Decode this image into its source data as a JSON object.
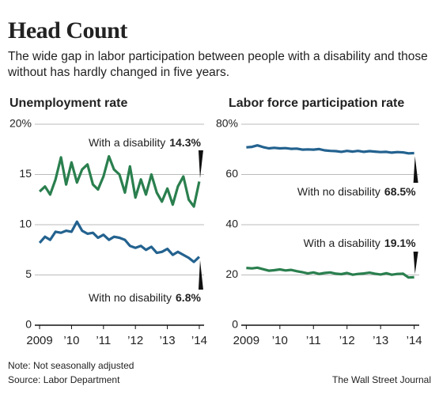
{
  "title": "Head Count",
  "subtitle": "The wide gap in labor participation between people with a disability and those without has hardly changed in five years.",
  "note": "Note: Not seasonally adjusted",
  "source": "Source: Labor Department",
  "credit": "The Wall Street Journal",
  "chart_data": [
    {
      "type": "line",
      "title": "Unemployment rate",
      "x": [
        2009,
        2009.17,
        2009.33,
        2009.5,
        2009.67,
        2009.83,
        2010,
        2010.17,
        2010.33,
        2010.5,
        2010.67,
        2010.83,
        2011,
        2011.17,
        2011.33,
        2011.5,
        2011.67,
        2011.83,
        2012,
        2012.17,
        2012.33,
        2012.5,
        2012.67,
        2012.83,
        2013,
        2013.17,
        2013.33,
        2013.5,
        2013.67,
        2013.83,
        2014
      ],
      "xlim": [
        2008.85,
        2014.15
      ],
      "xticks": [
        2009,
        {
          "value": 2010,
          "label": "’10"
        },
        {
          "value": 2011,
          "label": "’11"
        },
        {
          "value": 2012,
          "label": "’12"
        },
        {
          "value": 2013,
          "label": "’13"
        },
        {
          "value": 2014,
          "label": "’14"
        }
      ],
      "ylim": [
        0,
        20
      ],
      "yticks": [
        {
          "value": 20,
          "label": "20%"
        },
        15,
        10,
        5,
        0
      ],
      "grid": true,
      "series": [
        {
          "name": "With a disability",
          "color": "#2a7f4e",
          "values": [
            13.3,
            13.8,
            13.0,
            14.5,
            16.7,
            14.0,
            16.2,
            14.2,
            15.5,
            16.0,
            14.0,
            13.5,
            14.8,
            16.8,
            15.5,
            15.0,
            13.2,
            15.8,
            12.7,
            14.5,
            13.0,
            15.0,
            13.2,
            12.3,
            13.6,
            12.0,
            13.8,
            14.8,
            12.5,
            11.8,
            14.3
          ],
          "value_labels": [
            null,
            null,
            null,
            null,
            null,
            null,
            null,
            null,
            null,
            null,
            null,
            null,
            null,
            null,
            null,
            null,
            null,
            null,
            null,
            null,
            null,
            null,
            null,
            null,
            null,
            null,
            null,
            null,
            null,
            null,
            "14.3%"
          ]
        },
        {
          "name": "With no disability",
          "color": "#23628f",
          "values": [
            8.2,
            8.8,
            8.5,
            9.3,
            9.2,
            9.4,
            9.3,
            10.3,
            9.4,
            9.1,
            9.2,
            8.7,
            9.0,
            8.5,
            8.8,
            8.7,
            8.5,
            7.9,
            7.7,
            7.9,
            7.5,
            7.8,
            7.2,
            7.3,
            7.6,
            7.0,
            7.3,
            7.0,
            6.7,
            6.3,
            6.8
          ],
          "value_labels": [
            null,
            null,
            null,
            null,
            null,
            null,
            null,
            null,
            null,
            null,
            null,
            null,
            null,
            null,
            null,
            null,
            null,
            null,
            null,
            null,
            null,
            null,
            null,
            null,
            null,
            null,
            null,
            null,
            null,
            null,
            "6.8%"
          ]
        }
      ]
    },
    {
      "type": "line",
      "title": "Labor force participation rate",
      "x": [
        2009,
        2009.17,
        2009.33,
        2009.5,
        2009.67,
        2009.83,
        2010,
        2010.17,
        2010.33,
        2010.5,
        2010.67,
        2010.83,
        2011,
        2011.17,
        2011.33,
        2011.5,
        2011.67,
        2011.83,
        2012,
        2012.17,
        2012.33,
        2012.5,
        2012.67,
        2012.83,
        2013,
        2013.17,
        2013.33,
        2013.5,
        2013.67,
        2013.83,
        2014
      ],
      "xlim": [
        2008.85,
        2014.15
      ],
      "xticks": [
        2009,
        {
          "value": 2010,
          "label": "’10"
        },
        {
          "value": 2011,
          "label": "’11"
        },
        {
          "value": 2012,
          "label": "’12"
        },
        {
          "value": 2013,
          "label": "’13"
        },
        {
          "value": 2014,
          "label": "’14"
        }
      ],
      "ylim": [
        0,
        80
      ],
      "yticks": [
        {
          "value": 80,
          "label": "80%"
        },
        60,
        40,
        20,
        0
      ],
      "grid": true,
      "series": [
        {
          "name": "With no disability",
          "color": "#23628f",
          "values": [
            70.8,
            71.0,
            71.6,
            70.9,
            70.4,
            70.6,
            70.4,
            70.5,
            70.2,
            70.3,
            69.9,
            70.0,
            69.9,
            70.1,
            69.6,
            69.4,
            69.3,
            69.0,
            69.4,
            69.1,
            69.4,
            69.0,
            69.3,
            69.1,
            68.9,
            69.0,
            68.7,
            68.9,
            68.8,
            68.4,
            68.5
          ],
          "value_labels": [
            null,
            null,
            null,
            null,
            null,
            null,
            null,
            null,
            null,
            null,
            null,
            null,
            null,
            null,
            null,
            null,
            null,
            null,
            null,
            null,
            null,
            null,
            null,
            null,
            null,
            null,
            null,
            null,
            null,
            null,
            "68.5%"
          ]
        },
        {
          "name": "With a disability",
          "color": "#2a7f4e",
          "values": [
            22.8,
            22.6,
            22.9,
            22.3,
            21.7,
            21.9,
            22.2,
            21.8,
            22.0,
            21.5,
            21.1,
            20.6,
            21.0,
            20.4,
            20.8,
            21.0,
            20.5,
            20.3,
            20.8,
            20.1,
            20.4,
            20.6,
            20.9,
            20.5,
            20.2,
            20.7,
            20.1,
            20.4,
            20.5,
            19.0,
            19.1
          ],
          "value_labels": [
            null,
            null,
            null,
            null,
            null,
            null,
            null,
            null,
            null,
            null,
            null,
            null,
            null,
            null,
            null,
            null,
            null,
            null,
            null,
            null,
            null,
            null,
            null,
            null,
            null,
            null,
            null,
            null,
            null,
            null,
            "19.1%"
          ]
        }
      ]
    }
  ]
}
